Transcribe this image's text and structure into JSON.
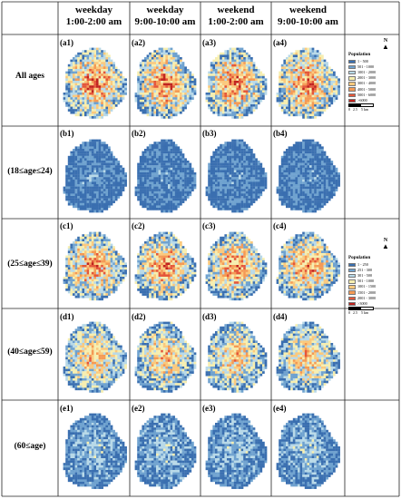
{
  "columns": [
    {
      "line1": "weekday",
      "line2": "1:00-2:00 am"
    },
    {
      "line1": "weekday",
      "line2": "9:00-10:00 am"
    },
    {
      "line1": "weekend",
      "line2": "1:00-2:00 am"
    },
    {
      "line1": "weekend",
      "line2": "9:00-10:00 am"
    }
  ],
  "rows": [
    {
      "label": "All ages",
      "panels": [
        "(a1)",
        "(a2)",
        "(a3)",
        "(a4)"
      ],
      "level": 0.62
    },
    {
      "label": "(18≤age≤24)",
      "panels": [
        "(b1)",
        "(b2)",
        "(b3)",
        "(b4)"
      ],
      "level": 0.12
    },
    {
      "label": "(25≤age≤39)",
      "panels": [
        "(c1)",
        "(c2)",
        "(c3)",
        "(c4)"
      ],
      "level": 0.6
    },
    {
      "label": "(40≤age≤59)",
      "panels": [
        "(d1)",
        "(d2)",
        "(d3)",
        "(d4)"
      ],
      "level": 0.5
    },
    {
      "label": "(60≤age)",
      "panels": [
        "(e1)",
        "(e2)",
        "(e3)",
        "(e4)"
      ],
      "level": 0.24
    }
  ],
  "legend_a": {
    "title": "Population",
    "items": [
      {
        "label": "1 - 500",
        "color": "#3a6fb0"
      },
      {
        "label": "501 - 1000",
        "color": "#6fa2cf"
      },
      {
        "label": "1001 - 2000",
        "color": "#b8d9e8"
      },
      {
        "label": "2001 - 3000",
        "color": "#f6eeb0"
      },
      {
        "label": "3001 - 4000",
        "color": "#fbc97d"
      },
      {
        "label": "4001 - 5000",
        "color": "#f49a55"
      },
      {
        "label": "5001 - 6000",
        "color": "#e4573a"
      },
      {
        "label": ">6000",
        "color": "#c0241f"
      }
    ],
    "scale": "0   2.5    5 km",
    "north": "N"
  },
  "legend_b": {
    "title": "Population",
    "items": [
      {
        "label": "1 - 250",
        "color": "#3a6fb0"
      },
      {
        "label": "251 - 300",
        "color": "#6fa2cf"
      },
      {
        "label": "301 - 500",
        "color": "#b8d9e8"
      },
      {
        "label": "501 - 1000",
        "color": "#f6eeb0"
      },
      {
        "label": "1001 - 1500",
        "color": "#fbc97d"
      },
      {
        "label": "1501 - 2000",
        "color": "#f49a55"
      },
      {
        "label": "2001 - 3000",
        "color": "#e4573a"
      },
      {
        "label": ">3000",
        "color": "#c0241f"
      }
    ],
    "scale": "0   2.5    5 km",
    "north": "N"
  }
}
